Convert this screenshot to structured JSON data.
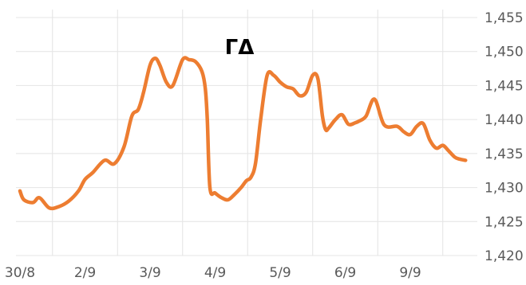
{
  "chart_data": {
    "type": "line",
    "title": "ΓΔ",
    "xlabel": "",
    "ylabel": "",
    "x_tick_labels": [
      "30/8",
      "2/9",
      "3/9",
      "4/9",
      "5/9",
      "6/9",
      "9/9"
    ],
    "y_tick_labels": [
      "1,420",
      "1,425",
      "1,430",
      "1,435",
      "1,440",
      "1,445",
      "1,450",
      "1,455"
    ],
    "ylim": [
      1.42,
      1.455
    ],
    "y_axis_position": "right",
    "grid": "vertical-and-horizontal",
    "legend": "none",
    "series": [
      {
        "color": "#ED7D31",
        "x": [
          0,
          0.06,
          0.2,
          0.3,
          0.45,
          0.6,
          0.75,
          0.9,
          1.0,
          1.12,
          1.3,
          1.45,
          1.6,
          1.72,
          1.82,
          1.9,
          2.0,
          2.08,
          2.15,
          2.25,
          2.35,
          2.5,
          2.6,
          2.7,
          2.8,
          2.85,
          2.88,
          2.92,
          3.0,
          3.1,
          3.2,
          3.3,
          3.4,
          3.48,
          3.55,
          3.62,
          3.7,
          3.8,
          3.9,
          4.0,
          4.1,
          4.2,
          4.3,
          4.4,
          4.5,
          4.58,
          4.65,
          4.7,
          4.75,
          4.85,
          4.95,
          5.05,
          5.15,
          5.22,
          5.32,
          5.45,
          5.6,
          5.8,
          5.9,
          6.0,
          6.1,
          6.2,
          6.3,
          6.4,
          6.5,
          6.58,
          6.68,
          6.75,
          6.85
        ],
        "values": [
          1.4295,
          1.4282,
          1.4278,
          1.4285,
          1.427,
          1.4272,
          1.428,
          1.4295,
          1.4312,
          1.4322,
          1.434,
          1.4335,
          1.436,
          1.4405,
          1.4415,
          1.444,
          1.448,
          1.449,
          1.448,
          1.4455,
          1.445,
          1.4488,
          1.4488,
          1.4485,
          1.447,
          1.4445,
          1.44,
          1.43,
          1.4292,
          1.4285,
          1.4282,
          1.429,
          1.43,
          1.431,
          1.4315,
          1.4335,
          1.44,
          1.4465,
          1.4465,
          1.4455,
          1.4448,
          1.4445,
          1.4435,
          1.444,
          1.4465,
          1.446,
          1.4405,
          1.4385,
          1.4388,
          1.44,
          1.4407,
          1.4393,
          1.4395,
          1.4398,
          1.4405,
          1.443,
          1.4392,
          1.439,
          1.4382,
          1.4378,
          1.439,
          1.4394,
          1.437,
          1.4358,
          1.4362,
          1.4355,
          1.4345,
          1.4342,
          1.434
        ]
      }
    ]
  }
}
